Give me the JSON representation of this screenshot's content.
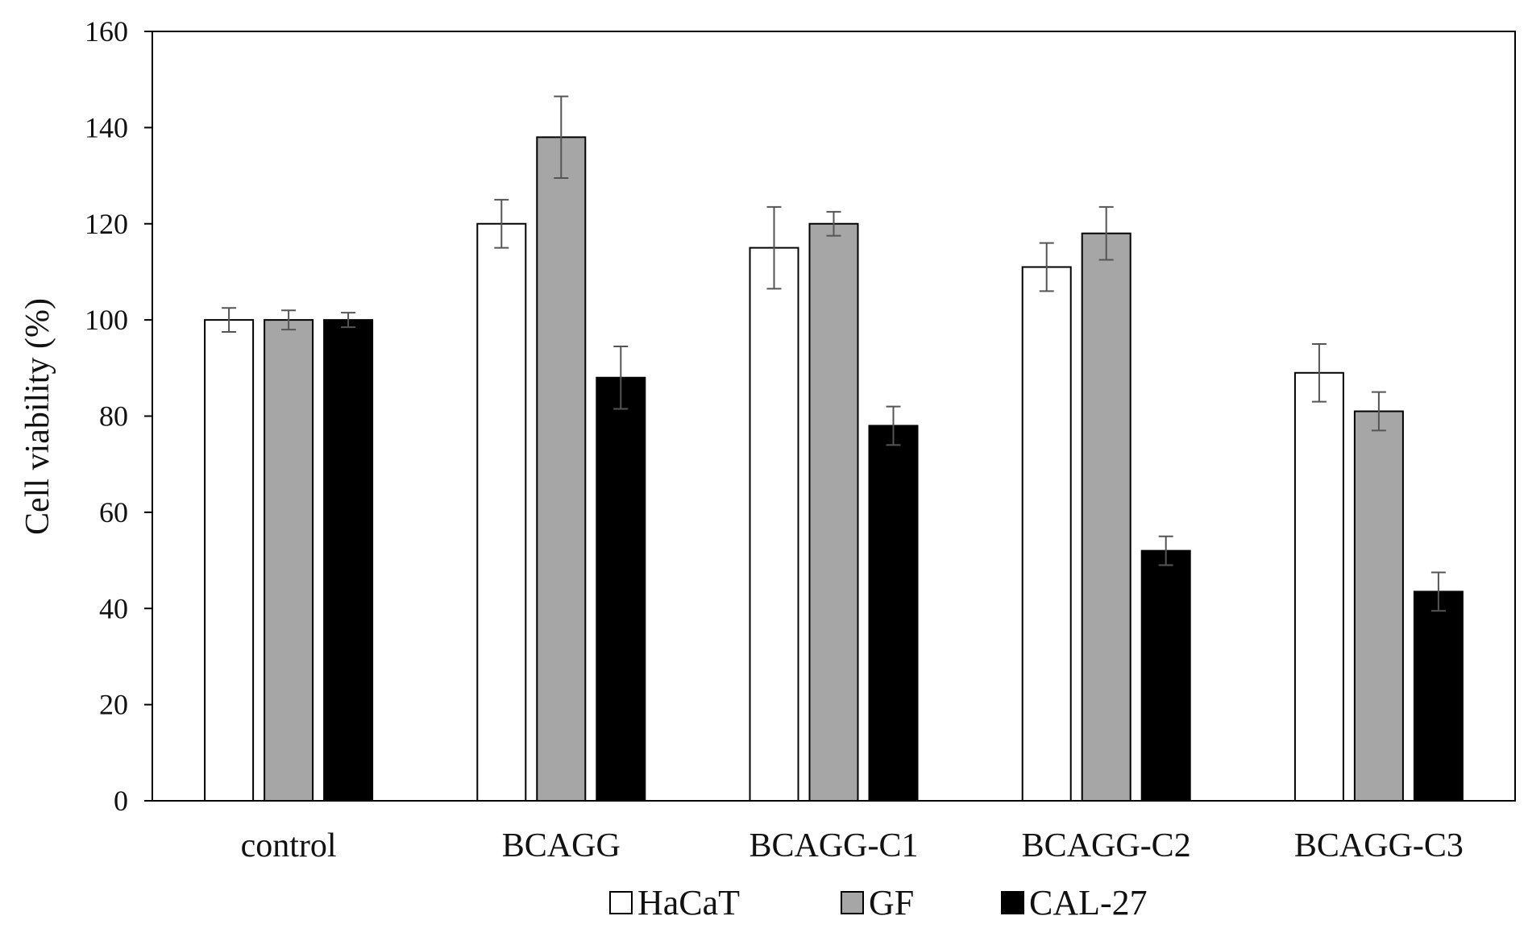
{
  "chart_data": {
    "type": "bar",
    "title": "",
    "xlabel": "",
    "ylabel": "Cell viability (%)",
    "ylim": [
      0,
      160
    ],
    "yticks": [
      0,
      20,
      40,
      60,
      80,
      100,
      120,
      140,
      160
    ],
    "ytick_labels": [
      "0",
      "20",
      "40",
      "60",
      "80",
      "100",
      "120",
      "140",
      "160"
    ],
    "grid": false,
    "legend_position": "bottom-center",
    "categories": [
      "control",
      "BCAGG",
      "BCAGG-C1",
      "BCAGG-C2",
      "BCAGG-C3"
    ],
    "series": [
      {
        "name": "HaCaT",
        "color": "#ffffff",
        "values": [
          100,
          120,
          115,
          111,
          89
        ],
        "errors": [
          2.5,
          5,
          8.5,
          5,
          6
        ]
      },
      {
        "name": "GF",
        "color": "#a6a6a6",
        "values": [
          100,
          138,
          120,
          118,
          81
        ],
        "errors": [
          2,
          8.5,
          2.5,
          5.5,
          4
        ]
      },
      {
        "name": "CAL-27",
        "color": "#000000",
        "values": [
          100,
          88,
          78,
          52,
          43.5
        ],
        "errors": [
          1.5,
          6.5,
          4,
          3,
          4
        ]
      }
    ]
  }
}
